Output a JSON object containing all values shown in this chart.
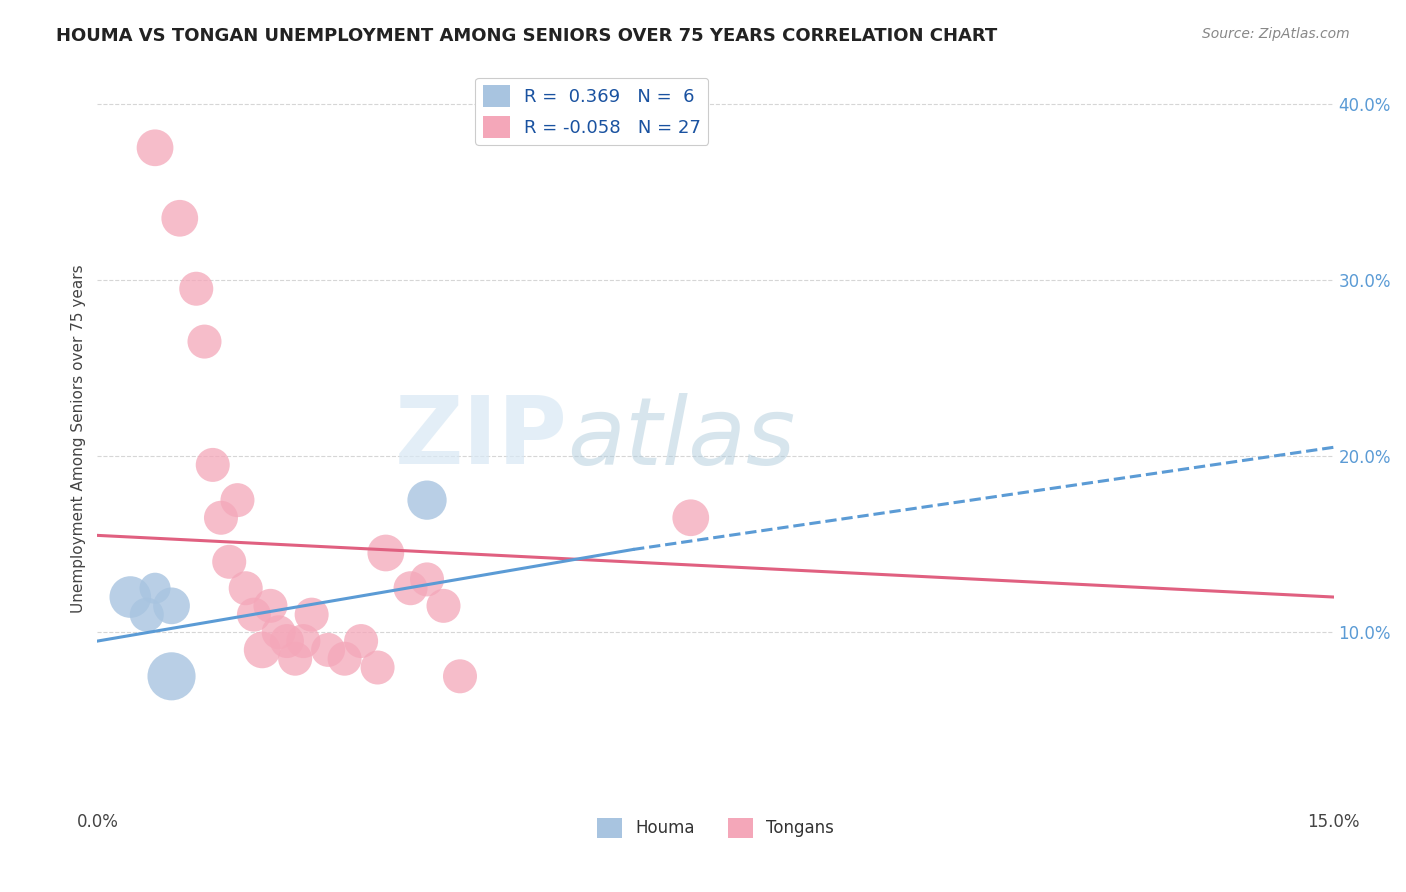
{
  "title": "HOUMA VS TONGAN UNEMPLOYMENT AMONG SENIORS OVER 75 YEARS CORRELATION CHART",
  "source": "Source: ZipAtlas.com",
  "ylabel": "Unemployment Among Seniors over 75 years",
  "xlim": [
    0.0,
    0.15
  ],
  "ylim": [
    0.0,
    0.42
  ],
  "xtick_positions": [
    0.0,
    0.15
  ],
  "xticklabels": [
    "0.0%",
    "15.0%"
  ],
  "yticks_right": [
    0.1,
    0.2,
    0.3,
    0.4
  ],
  "ytick_right_labels": [
    "10.0%",
    "20.0%",
    "30.0%",
    "40.0%"
  ],
  "houma_R": 0.369,
  "houma_N": 6,
  "tongan_R": -0.058,
  "tongan_N": 27,
  "houma_color": "#a8c4e0",
  "tongan_color": "#f4a7b9",
  "houma_line_color": "#5b9bd5",
  "tongan_line_color": "#e06080",
  "watermark_zip": "ZIP",
  "watermark_atlas": "atlas",
  "houma_x": [
    0.004,
    0.006,
    0.007,
    0.009,
    0.009,
    0.04
  ],
  "houma_y": [
    0.12,
    0.11,
    0.125,
    0.115,
    0.075,
    0.175
  ],
  "houma_size": [
    900,
    600,
    500,
    700,
    1200,
    800
  ],
  "tongan_x": [
    0.007,
    0.01,
    0.012,
    0.013,
    0.014,
    0.015,
    0.016,
    0.017,
    0.018,
    0.019,
    0.02,
    0.021,
    0.022,
    0.023,
    0.024,
    0.025,
    0.026,
    0.028,
    0.03,
    0.032,
    0.034,
    0.035,
    0.038,
    0.04,
    0.042,
    0.044,
    0.072
  ],
  "tongan_y": [
    0.375,
    0.335,
    0.295,
    0.265,
    0.195,
    0.165,
    0.14,
    0.175,
    0.125,
    0.11,
    0.09,
    0.115,
    0.1,
    0.095,
    0.085,
    0.095,
    0.11,
    0.09,
    0.085,
    0.095,
    0.08,
    0.145,
    0.125,
    0.13,
    0.115,
    0.075,
    0.165
  ],
  "tongan_size": [
    700,
    700,
    600,
    600,
    600,
    600,
    600,
    600,
    600,
    600,
    700,
    600,
    600,
    600,
    600,
    600,
    600,
    600,
    600,
    600,
    600,
    700,
    600,
    600,
    600,
    600,
    700
  ],
  "houma_line_x0": 0.0,
  "houma_line_y0": 0.095,
  "houma_line_x1": 0.15,
  "houma_line_y1": 0.195,
  "houma_dashed_line_x0": 0.0,
  "houma_dashed_line_y0": 0.095,
  "houma_dashed_line_x1": 0.15,
  "houma_dashed_line_y1": 0.205,
  "tongan_line_x0": 0.0,
  "tongan_line_y0": 0.155,
  "tongan_line_x1": 0.15,
  "tongan_line_y1": 0.12,
  "background_color": "#ffffff",
  "grid_color": "#cccccc"
}
